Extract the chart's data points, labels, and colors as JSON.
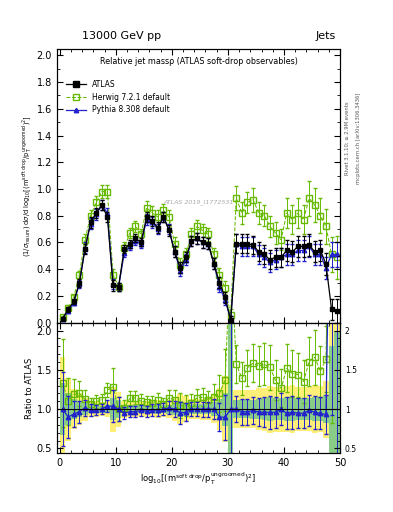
{
  "title_top": "13000 GeV pp",
  "title_right": "Jets",
  "main_title": "Relative jet massρ (ATLAS soft-drop observables)",
  "ylabel_main": "(1/σ_{resum}) dσ/d log_{10}[(m^{soft drop}/p_T^{ungroomed})^2]",
  "ylabel_ratio": "Ratio to ATLAS",
  "xlabel": "log_{10}[(m^{soft drop}/p_T^{ungroomed})^2]",
  "xlim": [
    -0.5,
    50
  ],
  "ylim_main": [
    0,
    2.05
  ],
  "ylim_ratio": [
    0.44,
    2.1
  ],
  "yticks_main": [
    0.0,
    0.2,
    0.4,
    0.6,
    0.8,
    1.0,
    1.2,
    1.4,
    1.6,
    1.8,
    2.0
  ],
  "yticks_ratio": [
    0.5,
    1.0,
    1.5,
    2.0
  ],
  "xticks": [
    0,
    10,
    20,
    30,
    40,
    50
  ],
  "watermark": "ATLAS 2019_I1772531",
  "right_label1": "Rivet 3.1.10; ≥ 2.9M events",
  "right_label2": "mcplots.cern.ch [arXiv:1306.3436]",
  "atlas_color": "#000000",
  "herwig_color": "#66bb00",
  "pythia_color": "#2222cc",
  "band_yellow": "#ffee77",
  "band_green": "#88cc88",
  "x": [
    0.5,
    1.5,
    2.5,
    3.5,
    4.5,
    5.5,
    6.5,
    7.5,
    8.5,
    9.5,
    10.5,
    11.5,
    12.5,
    13.5,
    14.5,
    15.5,
    16.5,
    17.5,
    18.5,
    19.5,
    20.5,
    21.5,
    22.5,
    23.5,
    24.5,
    25.5,
    26.5,
    27.5,
    28.5,
    29.5,
    30.5,
    31.5,
    32.5,
    33.5,
    34.5,
    35.5,
    36.5,
    37.5,
    38.5,
    39.5,
    40.5,
    41.5,
    42.5,
    43.5,
    44.5,
    45.5,
    46.5,
    47.5,
    48.5,
    49.5
  ],
  "atlas_y": [
    0.03,
    0.1,
    0.16,
    0.3,
    0.55,
    0.75,
    0.82,
    0.88,
    0.79,
    0.28,
    0.27,
    0.55,
    0.59,
    0.63,
    0.6,
    0.79,
    0.76,
    0.71,
    0.79,
    0.69,
    0.53,
    0.41,
    0.49,
    0.61,
    0.63,
    0.6,
    0.59,
    0.44,
    0.3,
    0.19,
    0.02,
    0.59,
    0.59,
    0.59,
    0.58,
    0.53,
    0.51,
    0.47,
    0.49,
    0.49,
    0.54,
    0.53,
    0.57,
    0.57,
    0.58,
    0.53,
    0.54,
    0.44,
    0.1,
    0.09
  ],
  "atlas_yerr": [
    0.01,
    0.02,
    0.02,
    0.03,
    0.04,
    0.04,
    0.04,
    0.04,
    0.04,
    0.04,
    0.03,
    0.03,
    0.03,
    0.03,
    0.03,
    0.04,
    0.04,
    0.04,
    0.04,
    0.04,
    0.04,
    0.04,
    0.04,
    0.04,
    0.04,
    0.04,
    0.04,
    0.04,
    0.04,
    0.04,
    0.03,
    0.07,
    0.07,
    0.07,
    0.07,
    0.07,
    0.07,
    0.07,
    0.07,
    0.07,
    0.08,
    0.08,
    0.08,
    0.08,
    0.08,
    0.08,
    0.08,
    0.08,
    0.08,
    0.09
  ],
  "herwig_y": [
    0.04,
    0.11,
    0.19,
    0.36,
    0.62,
    0.8,
    0.9,
    0.98,
    0.98,
    0.36,
    0.27,
    0.56,
    0.67,
    0.72,
    0.66,
    0.86,
    0.82,
    0.79,
    0.84,
    0.79,
    0.59,
    0.43,
    0.51,
    0.66,
    0.72,
    0.69,
    0.66,
    0.51,
    0.36,
    0.26,
    0.06,
    0.93,
    0.82,
    0.9,
    0.92,
    0.82,
    0.8,
    0.72,
    0.67,
    0.62,
    0.82,
    0.77,
    0.82,
    0.77,
    0.93,
    0.88,
    0.8,
    0.72,
    0.51,
    0.49
  ],
  "herwig_yerr": [
    0.01,
    0.02,
    0.02,
    0.03,
    0.04,
    0.04,
    0.05,
    0.05,
    0.05,
    0.04,
    0.03,
    0.04,
    0.04,
    0.04,
    0.04,
    0.05,
    0.05,
    0.05,
    0.05,
    0.05,
    0.05,
    0.05,
    0.05,
    0.05,
    0.05,
    0.05,
    0.05,
    0.05,
    0.05,
    0.05,
    0.04,
    0.09,
    0.08,
    0.08,
    0.09,
    0.08,
    0.08,
    0.08,
    0.08,
    0.08,
    0.11,
    0.11,
    0.11,
    0.11,
    0.13,
    0.13,
    0.13,
    0.13,
    0.13,
    0.16
  ],
  "pythia_y": [
    0.03,
    0.09,
    0.15,
    0.29,
    0.56,
    0.74,
    0.81,
    0.88,
    0.82,
    0.29,
    0.27,
    0.52,
    0.57,
    0.61,
    0.59,
    0.77,
    0.75,
    0.7,
    0.79,
    0.7,
    0.53,
    0.39,
    0.47,
    0.61,
    0.63,
    0.6,
    0.59,
    0.44,
    0.27,
    0.17,
    0.02,
    0.59,
    0.57,
    0.57,
    0.57,
    0.51,
    0.49,
    0.45,
    0.47,
    0.49,
    0.51,
    0.51,
    0.54,
    0.54,
    0.57,
    0.51,
    0.51,
    0.41,
    0.51,
    0.51
  ],
  "pythia_yerr": [
    0.01,
    0.02,
    0.02,
    0.03,
    0.04,
    0.04,
    0.04,
    0.04,
    0.04,
    0.04,
    0.03,
    0.03,
    0.03,
    0.03,
    0.03,
    0.04,
    0.04,
    0.04,
    0.04,
    0.04,
    0.04,
    0.04,
    0.04,
    0.04,
    0.04,
    0.04,
    0.04,
    0.04,
    0.04,
    0.04,
    0.03,
    0.07,
    0.07,
    0.07,
    0.07,
    0.07,
    0.07,
    0.07,
    0.07,
    0.07,
    0.08,
    0.08,
    0.08,
    0.08,
    0.08,
    0.08,
    0.08,
    0.08,
    0.09,
    0.09
  ]
}
